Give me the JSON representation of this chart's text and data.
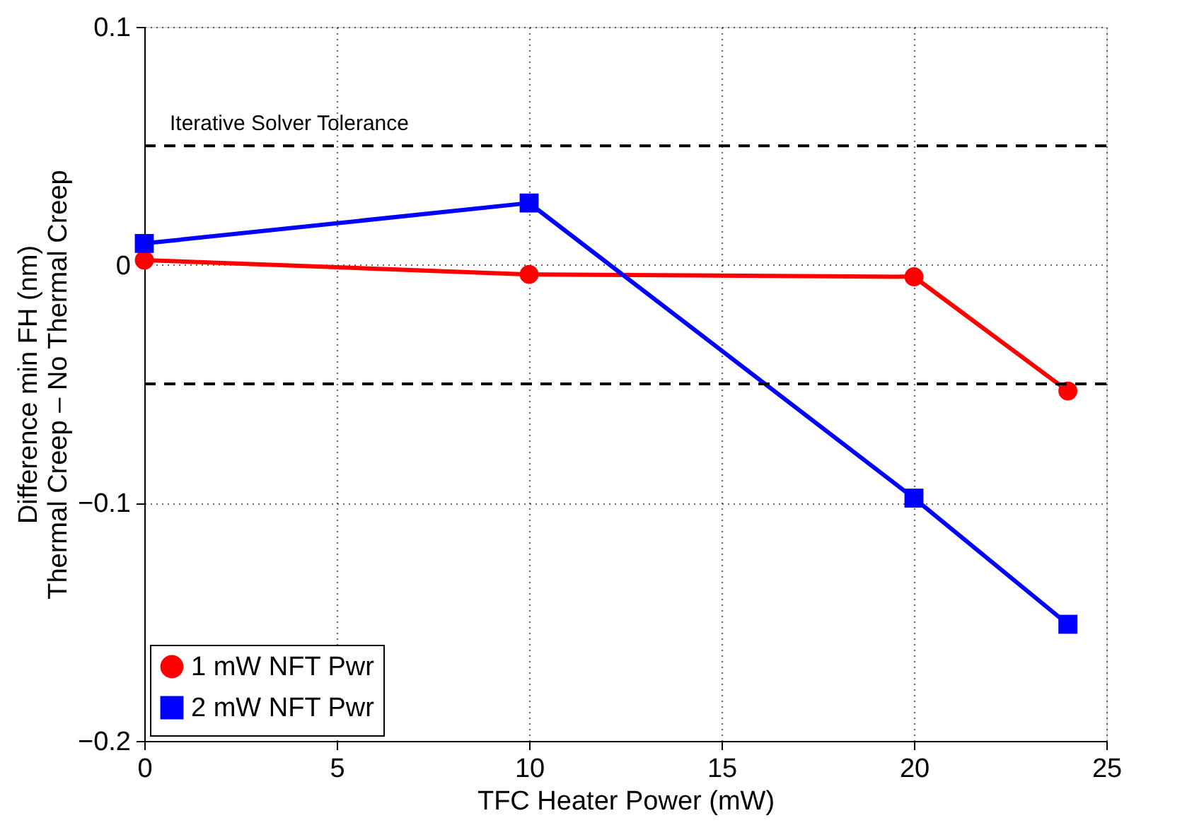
{
  "chart_data": {
    "type": "line",
    "xlabel": "TFC Heater Power (mW)",
    "ylabel": "Difference min FH (nm)\nThermal Creep – No Thermal Creep",
    "x": [
      0,
      10,
      20,
      24
    ],
    "series": [
      {
        "name": "1 mW NFT Pwr",
        "color": "#ff0000",
        "marker": "circle",
        "values": [
          0.002,
          -0.004,
          -0.005,
          -0.053
        ]
      },
      {
        "name": "2 mW NFT Pwr",
        "color": "#0000ff",
        "marker": "square",
        "values": [
          0.009,
          0.026,
          -0.098,
          -0.151
        ]
      }
    ],
    "ref_lines": [
      {
        "axis": "y",
        "value": 0.05,
        "label": "Iterative Solver Tolerance",
        "color": "#000000",
        "line_style": "dashed"
      },
      {
        "axis": "y",
        "value": -0.05,
        "color": "#000000",
        "line_style": "dashed"
      }
    ],
    "xlim": [
      0,
      25
    ],
    "xticks": [
      0,
      5,
      10,
      15,
      20,
      25
    ],
    "ylim": [
      -0.2,
      0.1
    ],
    "yticks": [
      -0.2,
      -0.1,
      0,
      0.1
    ],
    "grid": true,
    "legend": "bottom left",
    "line_style": "solid"
  }
}
